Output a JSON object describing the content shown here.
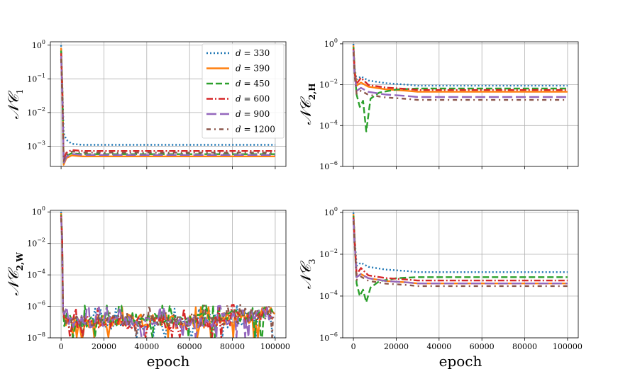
{
  "chart_data": {
    "type": "line",
    "x_tick_labels": [
      "0",
      "20000",
      "40000",
      "60000",
      "80000",
      "100000"
    ],
    "x_ticks": [
      0,
      20000,
      40000,
      60000,
      80000,
      100000
    ],
    "xlim": [
      -5000,
      105000
    ],
    "xlabel": "epoch",
    "series_styles": [
      {
        "name": "d = 330",
        "color": "#1f77b4",
        "dash": "dotted"
      },
      {
        "name": "d = 390",
        "color": "#ff7f0e",
        "dash": "solid"
      },
      {
        "name": "d = 450",
        "color": "#2ca02c",
        "dash": "dashed"
      },
      {
        "name": "d = 600",
        "color": "#d62728",
        "dash": "dashdot"
      },
      {
        "name": "d = 900",
        "color": "#9467bd",
        "dash": "longdash"
      },
      {
        "name": "d = 1200",
        "color": "#8c564b",
        "dash": "loosedashdot"
      }
    ],
    "legend": {
      "placement": "top-right of first subplot",
      "entries": [
        {
          "var": "d",
          "eq": " = 330"
        },
        {
          "var": "d",
          "eq": " = 390"
        },
        {
          "var": "d",
          "eq": " = 450"
        },
        {
          "var": "d",
          "eq": " = 600"
        },
        {
          "var": "d",
          "eq": " = 900"
        },
        {
          "var": "d",
          "eq": " = 1200"
        }
      ]
    },
    "subplots": [
      {
        "ylabel": {
          "main": "𝒩𝒞",
          "sub": "1"
        },
        "yscale": "log",
        "ylim_exp": [
          -3.6,
          0.1
        ],
        "y_ticks_exp": [
          0,
          -1,
          -2,
          -3
        ],
        "y_tick_labels": [
          {
            "base": "10",
            "exp": "0"
          },
          {
            "base": "10",
            "exp": "−1"
          },
          {
            "base": "10",
            "exp": "−2"
          },
          {
            "base": "10",
            "exp": "−3"
          }
        ],
        "show_x_ticklabels": false,
        "final_values": [
          0.0011,
          0.0005,
          0.00058,
          0.00072,
          0.00055,
          0.00065
        ],
        "description": "Sharp drop from ~1 at epoch 0 to near 1e-3 within a few thousand epochs, then flat."
      },
      {
        "ylabel": {
          "main": "𝒩𝒞",
          "sub": "2,H"
        },
        "yscale": "log",
        "ylim_exp": [
          -6,
          0.1
        ],
        "y_ticks_exp": [
          0,
          -2,
          -4,
          -6
        ],
        "y_tick_labels": [
          {
            "base": "10",
            "exp": "0"
          },
          {
            "base": "10",
            "exp": "−2"
          },
          {
            "base": "10",
            "exp": "−4"
          },
          {
            "base": "10",
            "exp": "−6"
          }
        ],
        "show_x_ticklabels": false,
        "final_values": [
          0.009,
          0.0045,
          0.0065,
          0.0055,
          0.0025,
          0.0018
        ],
        "description": "Drop to ~1e-2 range; d=450 dips to ~1e-4 around epoch 5000, then plateaus."
      },
      {
        "ylabel": {
          "main": "𝒩𝒞",
          "sub": "2,W"
        },
        "yscale": "log",
        "ylim_exp": [
          -8,
          0.1
        ],
        "y_ticks_exp": [
          0,
          -2,
          -4,
          -6,
          -8
        ],
        "y_tick_labels": [
          {
            "base": "10",
            "exp": "0"
          },
          {
            "base": "10",
            "exp": "−2"
          },
          {
            "base": "10",
            "exp": "−4"
          },
          {
            "base": "10",
            "exp": "−6"
          },
          {
            "base": "10",
            "exp": "−8"
          }
        ],
        "show_x_ticklabels": true,
        "final_values": [
          1e-07,
          2e-07,
          1e-07,
          3e-07,
          1.5e-07,
          1e-07
        ],
        "description": "Drop from ~1 to ~1e-7 and noisy fluctuation between 1e-8 and 1e-6, slowly rising late in training."
      },
      {
        "ylabel": {
          "main": "𝒩𝒞",
          "sub": "3"
        },
        "yscale": "log",
        "ylim_exp": [
          -6,
          0.1
        ],
        "y_ticks_exp": [
          0,
          -2,
          -4,
          -6
        ],
        "y_tick_labels": [
          {
            "base": "10",
            "exp": "0"
          },
          {
            "base": "10",
            "exp": "−2"
          },
          {
            "base": "10",
            "exp": "−4"
          },
          {
            "base": "10",
            "exp": "−6"
          }
        ],
        "show_x_ticklabels": true,
        "final_values": [
          0.0014,
          0.0004,
          0.0008,
          0.00055,
          0.0004,
          0.0003
        ],
        "description": "Drop from ~1 to ~1e-3, d=450 dips to ~1e-4 around epoch 6000, then plateaus."
      }
    ]
  }
}
